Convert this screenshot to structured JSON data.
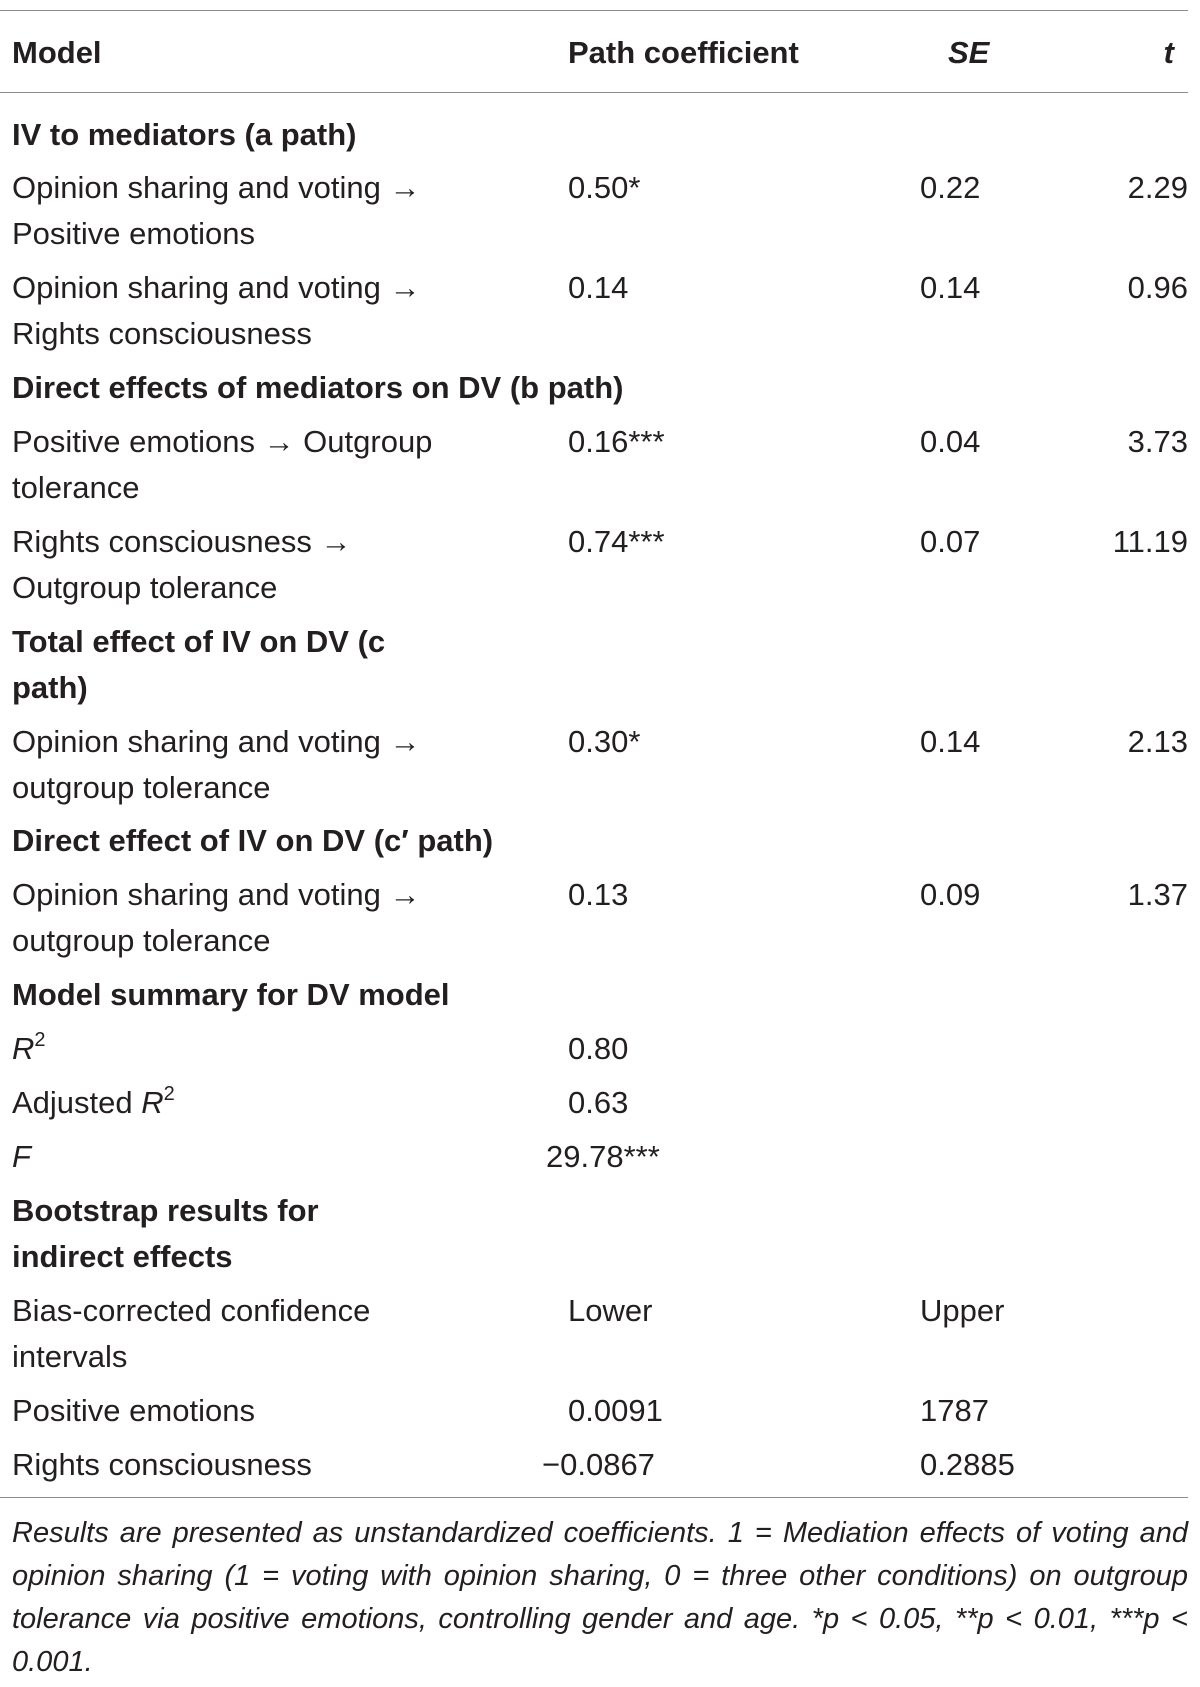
{
  "header": {
    "model": "Model",
    "path_coefficient": "Path coefficient",
    "se": "SE",
    "t": "t"
  },
  "rows": [
    {
      "kind": "section",
      "label": "IV to mediators (a path)"
    },
    {
      "kind": "data",
      "label_lines": [
        "Opinion sharing and voting →",
        "Positive emotions"
      ],
      "coef": "0.50*",
      "se": "0.22",
      "t": "2.29"
    },
    {
      "kind": "data",
      "label_lines": [
        "Opinion sharing and voting →",
        "Rights consciousness"
      ],
      "coef": "0.14",
      "se": "0.14",
      "t": "0.96"
    },
    {
      "kind": "section",
      "label": "Direct effects of mediators on DV (b path)"
    },
    {
      "kind": "data",
      "label_lines": [
        "Positive emotions → Outgroup",
        "tolerance"
      ],
      "coef": "0.16***",
      "se": "0.04",
      "t": "3.73"
    },
    {
      "kind": "data",
      "label_lines": [
        "Rights consciousness →",
        "Outgroup tolerance"
      ],
      "coef": "0.74***",
      "se": "0.07",
      "t": "11.19"
    },
    {
      "kind": "section",
      "label_lines": [
        "Total effect of IV on DV (c",
        "path)"
      ]
    },
    {
      "kind": "data",
      "label_lines": [
        "Opinion sharing and voting →",
        "outgroup tolerance"
      ],
      "coef": "0.30*",
      "se": "0.14",
      "t": "2.13"
    },
    {
      "kind": "section",
      "label": "Direct effect of IV on DV (c′ path)"
    },
    {
      "kind": "data",
      "label_lines": [
        "Opinion sharing and voting →",
        "outgroup tolerance"
      ],
      "coef": "0.13",
      "se": "0.09",
      "t": "1.37"
    },
    {
      "kind": "section",
      "label": "Model summary for DV model"
    },
    {
      "kind": "stat",
      "label": "R",
      "sup": "2",
      "coef": "0.80"
    },
    {
      "kind": "stat",
      "prefix": "Adjusted ",
      "label": "R",
      "sup": "2",
      "coef": "0.63"
    },
    {
      "kind": "stat",
      "label": "F",
      "coef": "29.78***"
    },
    {
      "kind": "section",
      "label_lines": [
        "Bootstrap results for",
        "indirect effects"
      ]
    },
    {
      "kind": "data",
      "label_lines": [
        "Bias-corrected confidence",
        "intervals"
      ],
      "coef": "Lower",
      "se": "Upper"
    },
    {
      "kind": "data",
      "label": "Positive emotions",
      "coef": "0.0091",
      "se": "1787"
    },
    {
      "kind": "data",
      "label": "Rights consciousness",
      "coef": "−0.0867",
      "se": "0.2885"
    }
  ],
  "footnote": "Results are presented as unstandardized coefficients. 1 = Mediation effects of voting and opinion sharing (1 = voting with opinion sharing, 0 = three other conditions) on outgroup tolerance via positive emotions, controlling gender and age. *p < 0.05, **p < 0.01, ***p < 0.001."
}
